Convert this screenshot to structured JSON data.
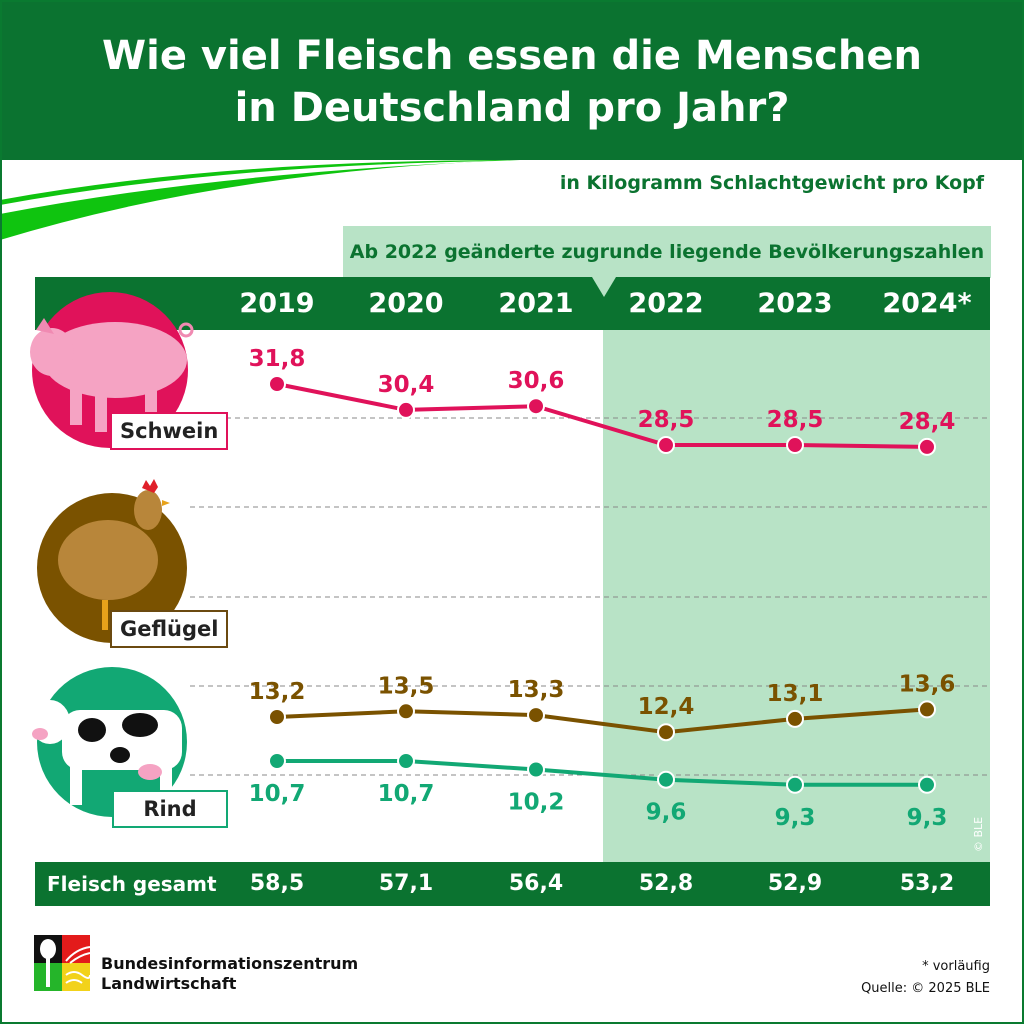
{
  "title_line1": "Wie viel Fleisch essen die Menschen",
  "title_line2": "in Deutschland pro Jahr?",
  "subtitle": "in Kilogramm Schlachtgewicht pro Kopf",
  "note": "Ab 2022 geänderte zugrunde liegende Bevölkerungszahlen",
  "colors": {
    "brand_green": "#0b7330",
    "shade": "#b8e3c6",
    "schwein": "#e0125a",
    "gefluegel": "#7a5200",
    "rind": "#12a874"
  },
  "chart_data": {
    "type": "line",
    "categories": [
      "2019",
      "2020",
      "2021",
      "2022",
      "2023",
      "2024*"
    ],
    "series": [
      {
        "name": "Schwein",
        "values": [
          31.8,
          30.4,
          30.6,
          28.5,
          28.5,
          28.4
        ],
        "color": "#e0125a"
      },
      {
        "name": "Geflügel",
        "values": [
          13.2,
          13.5,
          13.3,
          12.4,
          13.1,
          13.6
        ],
        "color": "#7a5200"
      },
      {
        "name": "Rind",
        "values": [
          10.7,
          10.7,
          10.2,
          9.6,
          9.3,
          9.3
        ],
        "color": "#12a874"
      }
    ],
    "value_labels": {
      "Schwein": [
        "31,8",
        "30,4",
        "30,6",
        "28,5",
        "28,5",
        "28,4"
      ],
      "Geflügel": [
        "13,2",
        "13,5",
        "13,3",
        "12,4",
        "13,1",
        "13,6"
      ],
      "Rind": [
        "10,7",
        "10,7",
        "10,2",
        "9,6",
        "9,3",
        "9,3"
      ]
    },
    "total_label": "Fleisch gesamt",
    "totals": [
      "58,5",
      "57,1",
      "56,4",
      "52,8",
      "52,9",
      "53,2"
    ],
    "highlighted_from": "2022"
  },
  "footer": {
    "org_line1": "Bundesinformationszentrum",
    "org_line2": "Landwirtschaft",
    "footnote": "* vorläufig",
    "source": "Quelle: © 2025 BLE",
    "copyright": "© BLE"
  }
}
